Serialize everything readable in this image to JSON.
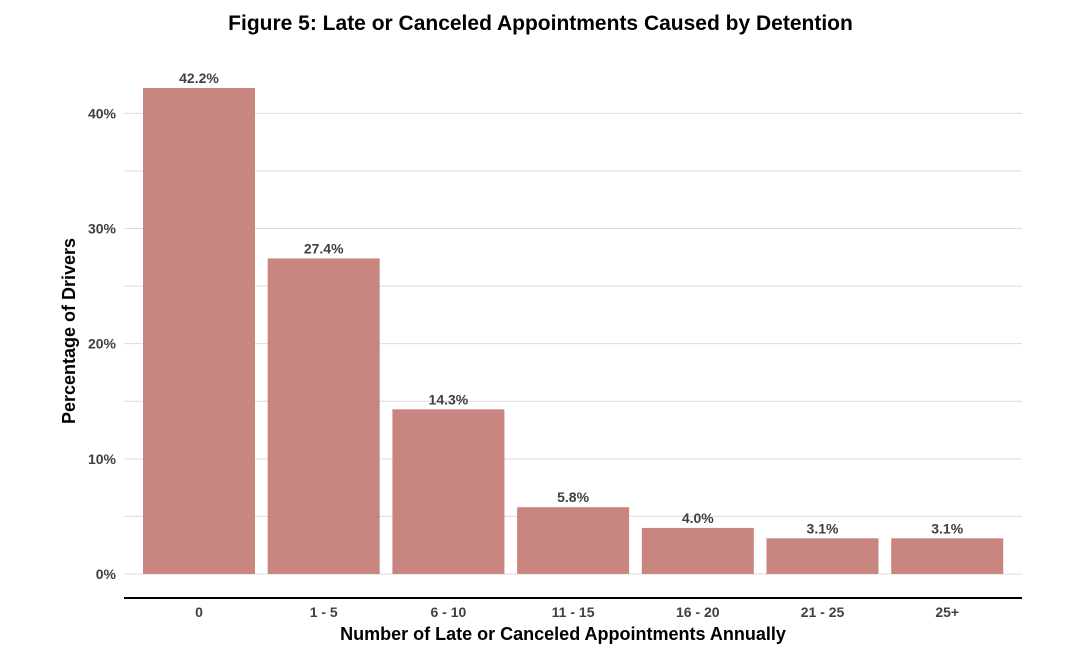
{
  "chart_data": {
    "type": "bar",
    "title": "Figure 5: Late or Canceled Appointments Caused by Detention",
    "xlabel": "Number of Late or Canceled Appointments Annually",
    "ylabel": "Percentage of Drivers",
    "categories": [
      "0",
      "1 - 5",
      "6 - 10",
      "11 - 15",
      "16 - 20",
      "21 - 25",
      "25+"
    ],
    "values": [
      42.2,
      27.4,
      14.3,
      5.8,
      4.0,
      3.1,
      3.1
    ],
    "data_labels": [
      "42.2%",
      "27.4%",
      "14.3%",
      "5.8%",
      "4.0%",
      "3.1%",
      "3.1%"
    ],
    "yticks": [
      0,
      10,
      20,
      30,
      40
    ],
    "ytick_labels": [
      "0%",
      "10%",
      "20%",
      "30%",
      "40%"
    ],
    "ylim": [
      0,
      42.2
    ],
    "grid": true,
    "legend": "none",
    "colors": {
      "bar": "#c98580",
      "grid": "#dcdcdc",
      "axis": "#000000",
      "text": "#404040"
    }
  }
}
